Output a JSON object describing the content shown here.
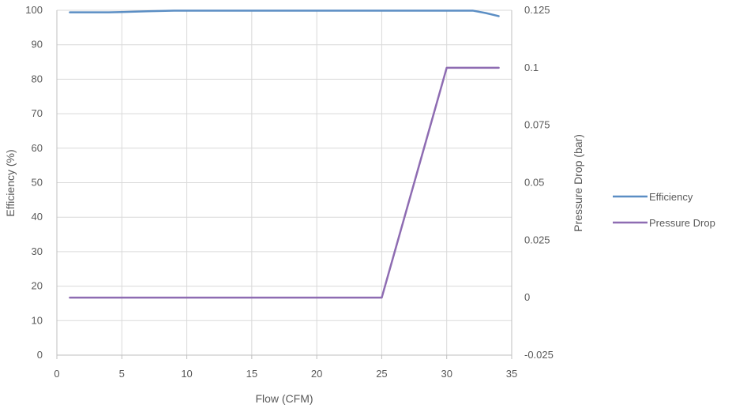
{
  "chart_data": {
    "type": "line",
    "x": [
      1,
      2,
      3,
      4,
      5,
      6,
      7,
      8,
      9,
      10,
      11,
      12,
      13,
      14,
      15,
      16,
      17,
      18,
      19,
      20,
      21,
      22,
      23,
      24,
      25,
      26,
      27,
      28,
      29,
      30,
      31,
      32,
      33,
      34
    ],
    "series": [
      {
        "name": "Efficiency",
        "axis": "left",
        "color": "#5B8EC4",
        "values": [
          99.4,
          99.4,
          99.4,
          99.4,
          99.5,
          99.6,
          99.7,
          99.8,
          99.9,
          99.9,
          99.9,
          99.9,
          99.9,
          99.9,
          99.9,
          99.9,
          99.9,
          99.9,
          99.9,
          99.9,
          99.9,
          99.9,
          99.9,
          99.9,
          99.9,
          99.9,
          99.9,
          99.9,
          99.9,
          99.9,
          99.9,
          99.9,
          99.2,
          98.3
        ]
      },
      {
        "name": "Pressure Drop",
        "axis": "right",
        "color": "#8E6CB2",
        "values": [
          0,
          0,
          0,
          0,
          0,
          0,
          0,
          0,
          0,
          0,
          0,
          0,
          0,
          0,
          0,
          0,
          0,
          0,
          0,
          0,
          0,
          0,
          0,
          0,
          0,
          0.02,
          0.04,
          0.06,
          0.08,
          0.1,
          0.1,
          0.1,
          0.1,
          0.1
        ]
      }
    ],
    "xlabel": "Flow (CFM)",
    "ylabel": "Efficiency (%)",
    "y2label": "Pressure Drop (bar)",
    "xlim": [
      0,
      35
    ],
    "xticks": [
      0,
      5,
      10,
      15,
      20,
      25,
      30,
      35
    ],
    "ylim": [
      0,
      100
    ],
    "yticks": [
      0,
      10,
      20,
      30,
      40,
      50,
      60,
      70,
      80,
      90,
      100
    ],
    "y2lim": [
      -0.025,
      0.125
    ],
    "y2ticks": [
      -0.025,
      0,
      0.025,
      0.05,
      0.075,
      0.1,
      0.125
    ],
    "y2tick_labels": [
      "-0.025",
      "0",
      "0.025",
      "0.05",
      "0.075",
      "0.1",
      "0.125"
    ],
    "grid": true,
    "legend_position": "right",
    "grid_color": "#D9D9D9",
    "axis_color": "#BFBFBF"
  }
}
